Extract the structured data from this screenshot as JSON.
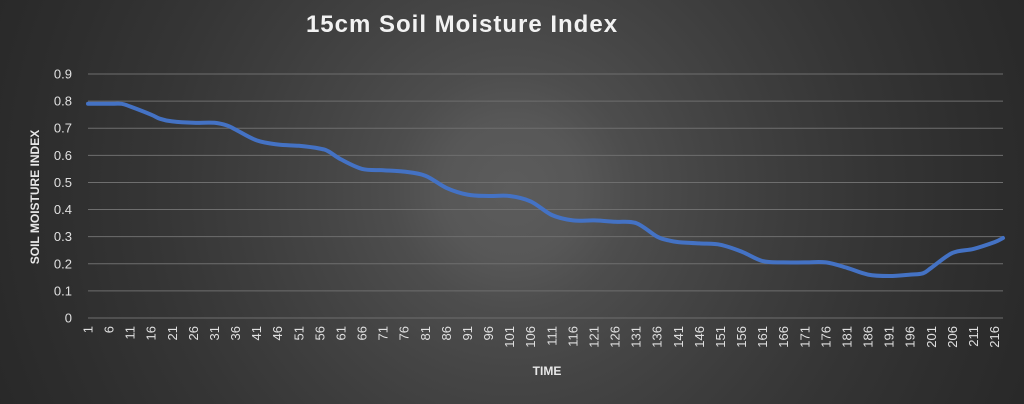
{
  "chart_data": {
    "type": "line",
    "title": "15cm Soil Moisture Index",
    "xlabel": "TIME",
    "ylabel": "SOIL MOISTURE INDEX",
    "ylim": [
      0,
      0.9
    ],
    "yticks": [
      "0",
      "0.1",
      "0.2",
      "0.3",
      "0.4",
      "0.5",
      "0.6",
      "0.7",
      "0.8",
      "0.9"
    ],
    "xlim": [
      1,
      218
    ],
    "xticks": [
      "1",
      "6",
      "11",
      "16",
      "21",
      "26",
      "31",
      "36",
      "41",
      "46",
      "51",
      "56",
      "61",
      "66",
      "71",
      "76",
      "81",
      "86",
      "91",
      "96",
      "101",
      "106",
      "111",
      "116",
      "121",
      "126",
      "131",
      "136",
      "141",
      "146",
      "151",
      "156",
      "161",
      "166",
      "171",
      "176",
      "181",
      "186",
      "191",
      "196",
      "201",
      "206",
      "211",
      "216"
    ],
    "grid": true,
    "line_color": "#4472C4",
    "series": [
      {
        "x": [
          1,
          6,
          9,
          11,
          16,
          18,
          21,
          26,
          31,
          34,
          36,
          41,
          46,
          51,
          56,
          58,
          61,
          66,
          71,
          76,
          81,
          86,
          91,
          96,
          101,
          106,
          111,
          116,
          121,
          126,
          131,
          136,
          139,
          141,
          146,
          151,
          156,
          161,
          166,
          171,
          176,
          181,
          186,
          191,
          196,
          199,
          201,
          206,
          211,
          216,
          218
        ],
        "y": [
          0.79,
          0.79,
          0.79,
          0.78,
          0.75,
          0.735,
          0.725,
          0.72,
          0.72,
          0.71,
          0.695,
          0.655,
          0.64,
          0.635,
          0.625,
          0.615,
          0.585,
          0.55,
          0.545,
          0.54,
          0.525,
          0.48,
          0.455,
          0.45,
          0.45,
          0.43,
          0.38,
          0.36,
          0.36,
          0.355,
          0.35,
          0.3,
          0.285,
          0.28,
          0.275,
          0.27,
          0.245,
          0.21,
          0.205,
          0.205,
          0.205,
          0.185,
          0.16,
          0.155,
          0.16,
          0.165,
          0.185,
          0.24,
          0.255,
          0.28,
          0.295
        ]
      }
    ]
  }
}
